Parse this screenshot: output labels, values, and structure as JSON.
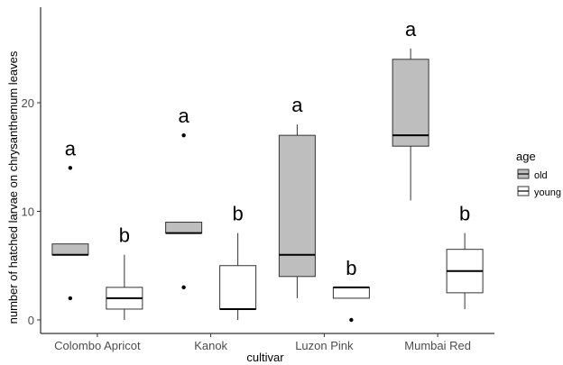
{
  "chart_data": {
    "type": "boxplot",
    "xlabel": "cultivar",
    "ylabel": "number of hatched larvae on chrysanthemum leaves",
    "ylim": [
      -1.5,
      28.5
    ],
    "yticks": [
      0,
      10,
      20
    ],
    "categories": [
      "Colombo Apricot",
      "Kanok",
      "Luzon Pink",
      "Mumbai Red"
    ],
    "grid": false,
    "legend": {
      "title": "age",
      "position": "right",
      "entries": [
        {
          "label": "old",
          "color": "#bebebe"
        },
        {
          "label": "young",
          "color": "#ffffff"
        }
      ]
    },
    "series": [
      {
        "name": "old",
        "fill": "#bebebe",
        "boxes": [
          {
            "min": 6,
            "q1": 6,
            "median": 6,
            "q3": 7,
            "max": 7,
            "outliers": [
              2,
              14
            ],
            "letter": "a"
          },
          {
            "min": 8,
            "q1": 8,
            "median": 8,
            "q3": 9,
            "max": 9,
            "outliers": [
              3,
              17
            ],
            "letter": "a"
          },
          {
            "min": 2,
            "q1": 4,
            "median": 6,
            "q3": 17,
            "max": 18,
            "outliers": [],
            "letter": "a"
          },
          {
            "min": 11,
            "q1": 16,
            "median": 17,
            "q3": 24,
            "max": 25,
            "outliers": [],
            "letter": "a"
          }
        ]
      },
      {
        "name": "young",
        "fill": "#ffffff",
        "boxes": [
          {
            "min": 0,
            "q1": 1,
            "median": 2,
            "q3": 3,
            "max": 6,
            "outliers": [],
            "letter": "b"
          },
          {
            "min": 0,
            "q1": 1,
            "median": 1,
            "q3": 5,
            "max": 8,
            "outliers": [],
            "letter": "b"
          },
          {
            "min": 2,
            "q1": 2,
            "median": 3,
            "q3": 3,
            "max": 3,
            "outliers": [
              0
            ],
            "letter": "b"
          },
          {
            "min": 1,
            "q1": 2.5,
            "median": 4.5,
            "q3": 6.5,
            "max": 8,
            "outliers": [],
            "letter": "b"
          }
        ]
      }
    ]
  }
}
